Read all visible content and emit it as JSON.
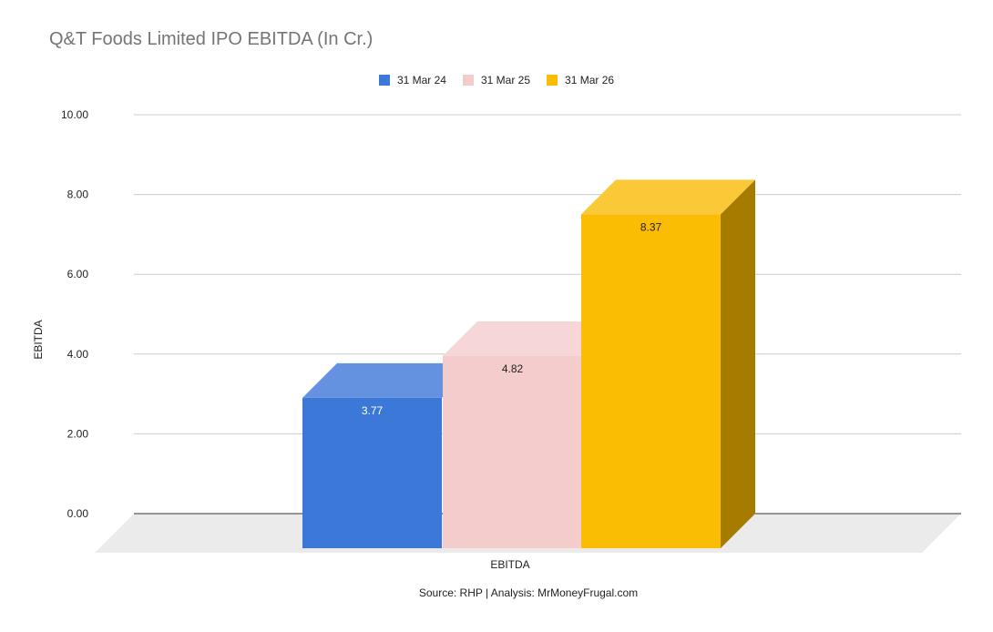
{
  "chart_data": {
    "type": "bar",
    "title": "Q&T Foods Limited IPO EBITDA (In Cr.)",
    "categories": [
      "EBITDA"
    ],
    "series": [
      {
        "name": "31 Mar 24",
        "values": [
          3.77
        ],
        "color": "#3c78d8",
        "top_color": "#6592e0"
      },
      {
        "name": "31 Mar 25",
        "values": [
          4.82
        ],
        "color": "#f4cccc",
        "top_color": "#f6d6d6",
        "side_color": "#c9a7a7"
      },
      {
        "name": "31 Mar 26",
        "values": [
          8.37
        ],
        "color": "#fbbc04",
        "top_color": "#fbc937",
        "side_color": "#a57b00"
      }
    ],
    "data_labels": [
      "3.77",
      "4.82",
      "8.37"
    ],
    "xlabel": "EBITDA",
    "ylabel": "EBITDA",
    "ylim": [
      0,
      10
    ],
    "yticks": [
      "0.00",
      "2.00",
      "4.00",
      "6.00",
      "8.00",
      "10.00"
    ],
    "grid": true,
    "legend_position": "top",
    "three_d": true,
    "source": "Source: RHP | Analysis: MrMoneyFrugal.com"
  }
}
